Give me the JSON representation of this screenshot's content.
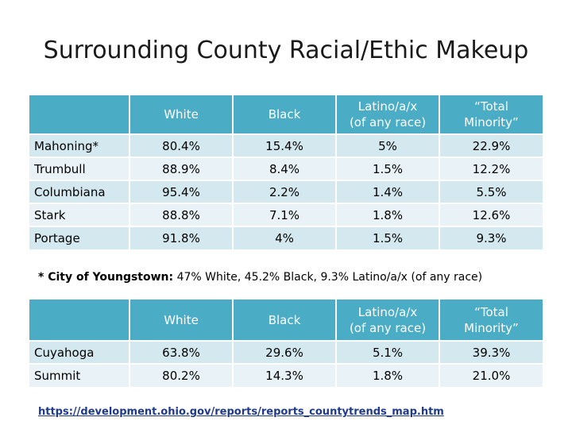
{
  "title": "Surrounding County Racial/Ethic Makeup",
  "table1": {
    "headers": [
      "",
      "White",
      "Black",
      "Latino/a/x\n(of any race)",
      "“Total\nMinority”"
    ],
    "header_lines": {
      "white": "White",
      "black": "Black",
      "latino_1": "Latino/a/x",
      "latino_2": "(of any race)",
      "minority_1": "“Total",
      "minority_2": "Minority”"
    },
    "rows": [
      {
        "county": "Mahoning*",
        "white": "80.4%",
        "black": "15.4%",
        "latino": "5%",
        "minority": "22.9%"
      },
      {
        "county": "Trumbull",
        "white": "88.9%",
        "black": "8.4%",
        "latino": "1.5%",
        "minority": "12.2%"
      },
      {
        "county": "Columbiana",
        "white": "95.4%",
        "black": "2.2%",
        "latino": "1.4%",
        "minority": "5.5%"
      },
      {
        "county": "Stark",
        "white": "88.8%",
        "black": "7.1%",
        "latino": "1.8%",
        "minority": "12.6%"
      },
      {
        "county": "Portage",
        "white": "91.8%",
        "black": "4%",
        "latino": "1.5%",
        "minority": "9.3%"
      }
    ]
  },
  "footnote": {
    "bold": "* City of Youngstown:",
    "rest": " 47% White, 45.2% Black, 9.3% Latino/a/x  (of any race)"
  },
  "table2": {
    "header_lines": {
      "white": "White",
      "black": "Black",
      "latino_1": "Latino/a/x",
      "latino_2": "(of any race)",
      "minority_1": "“Total",
      "minority_2": "Minority”"
    },
    "rows": [
      {
        "county": "Cuyahoga",
        "white": "63.8%",
        "black": "29.6%",
        "latino": "5.1%",
        "minority": "39.3%"
      },
      {
        "county": "Summit",
        "white": "80.2%",
        "black": "14.3%",
        "latino": "1.8%",
        "minority": "21.0%"
      }
    ]
  },
  "source_link": "https://development.ohio.gov/reports/reports_countytrends_map.htm",
  "colors": {
    "header_bg": "#4bacc6",
    "row_dark": "#d3e8ef",
    "row_light": "#e9f3f7",
    "link": "#1f3a8a"
  }
}
